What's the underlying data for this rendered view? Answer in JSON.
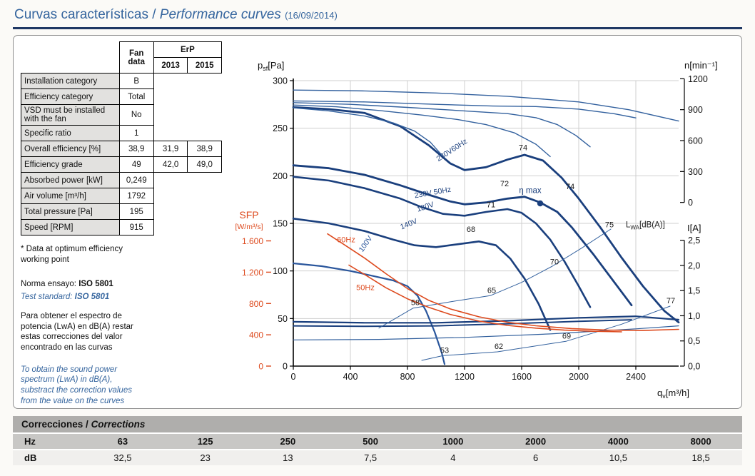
{
  "page": {
    "title_es": "Curvas características",
    "title_sep": " / ",
    "title_en": "Performance curves",
    "title_date": "(16/09/2014)"
  },
  "fan_table": {
    "header": {
      "fan": "Fan\ndata",
      "erp": "ErP",
      "y2013": "2013",
      "y2015": "2015"
    },
    "rows": [
      {
        "label": "Installation category",
        "fan": "B"
      },
      {
        "label": "Efficiency category",
        "fan": "Total"
      },
      {
        "label": "VSD must be installed with the fan",
        "fan": "No"
      },
      {
        "label": "Specific ratio",
        "fan": "1"
      },
      {
        "label": "Overall efficiency [%]",
        "fan": "38,9",
        "erp2013": "31,9",
        "erp2015": "38,9"
      },
      {
        "label": "Efficiency grade",
        "fan": "49",
        "erp2013": "42,0",
        "erp2015": "49,0"
      },
      {
        "label": "Absorbed power [kW]",
        "fan": "0,249"
      },
      {
        "label": "Air volume [m³/h]",
        "fan": "1792"
      },
      {
        "label": "Total pressure [Pa]",
        "fan": "195"
      },
      {
        "label": "Speed [RPM]",
        "fan": "915"
      }
    ]
  },
  "notes": {
    "star": "* Data at optimum efficiency\nworking point",
    "norma_prefix": "Norma ensayo: ",
    "norma_value": "ISO 5801",
    "test_prefix": "Test standard: ",
    "test_value": "ISO 5801",
    "para_es": "Para obtener el espectro de\npotencia (LwA) en dB(A) restar\nestas correcciones del valor\nencontrado en las curvas",
    "para_en": "To obtain the sound power\nspectrum (LwA) in dB(A),\nsubstract the correction values\nfrom the value on the curves"
  },
  "chart_data": {
    "type": "line",
    "title": "",
    "axes": {
      "x": {
        "sym": "q",
        "sub": "v",
        "unit": "[m³/h]",
        "ticks": [
          0,
          400,
          800,
          1200,
          1600,
          2000,
          2400
        ],
        "max": 2700
      },
      "pressure": {
        "sym": "p",
        "sub": "sf",
        "unit": "[Pa]",
        "ticks": [
          0,
          50,
          100,
          150,
          200,
          250,
          300
        ]
      },
      "speed": {
        "label": "n",
        "unit": "[min⁻¹]",
        "ticks": [
          "1200",
          "900",
          "600",
          "300",
          "0"
        ]
      },
      "current": {
        "label": "I",
        "unit": "[A]",
        "ticks": [
          "2,5",
          "2,0",
          "1,5",
          "1,0",
          "0,5",
          "0,0"
        ]
      },
      "sfp": {
        "label": "SFP",
        "unit": "[W/m³/s]",
        "ticks": [
          "1.600",
          "1.200",
          "800",
          "400",
          "0"
        ],
        "color": "#dd4a1e"
      }
    },
    "series": [
      {
        "name": "pressure-230V60Hz",
        "axis": "pa",
        "color": "#1a3f7d",
        "width": 2.8,
        "points": [
          [
            0,
            272
          ],
          [
            250,
            270
          ],
          [
            500,
            266
          ],
          [
            750,
            252
          ],
          [
            950,
            232
          ],
          [
            1100,
            213
          ],
          [
            1200,
            206
          ],
          [
            1350,
            209
          ],
          [
            1500,
            217
          ],
          [
            1620,
            222
          ],
          [
            1750,
            216
          ],
          [
            1880,
            198
          ],
          [
            2000,
            176
          ],
          [
            2150,
            146
          ],
          [
            2300,
            114
          ],
          [
            2450,
            84
          ],
          [
            2600,
            58
          ],
          [
            2700,
            46
          ]
        ]
      },
      {
        "name": "pressure-230V50Hz",
        "axis": "pa",
        "color": "#1a3f7d",
        "width": 2.8,
        "points": [
          [
            0,
            211
          ],
          [
            250,
            208
          ],
          [
            500,
            201
          ],
          [
            750,
            190
          ],
          [
            950,
            180
          ],
          [
            1100,
            173
          ],
          [
            1200,
            170
          ],
          [
            1350,
            172
          ],
          [
            1500,
            176
          ],
          [
            1620,
            178
          ],
          [
            1730,
            172
          ],
          [
            1850,
            162
          ],
          [
            1950,
            146
          ],
          [
            2100,
            118
          ],
          [
            2250,
            88
          ],
          [
            2370,
            64
          ]
        ]
      },
      {
        "name": "pressure-180V",
        "axis": "pa",
        "color": "#1a3f7d",
        "width": 2.6,
        "points": [
          [
            0,
            199
          ],
          [
            250,
            195
          ],
          [
            500,
            187
          ],
          [
            750,
            176
          ],
          [
            900,
            167
          ],
          [
            1050,
            160
          ],
          [
            1200,
            158
          ],
          [
            1350,
            162
          ],
          [
            1500,
            165
          ],
          [
            1600,
            161
          ],
          [
            1700,
            150
          ],
          [
            1800,
            133
          ],
          [
            1900,
            110
          ],
          [
            2000,
            84
          ],
          [
            2080,
            62
          ]
        ]
      },
      {
        "name": "pressure-140V",
        "axis": "pa",
        "color": "#1a3f7d",
        "width": 2.6,
        "points": [
          [
            0,
            155
          ],
          [
            250,
            150
          ],
          [
            500,
            142
          ],
          [
            700,
            133
          ],
          [
            850,
            127
          ],
          [
            1000,
            125
          ],
          [
            1150,
            128
          ],
          [
            1300,
            131
          ],
          [
            1420,
            127
          ],
          [
            1520,
            113
          ],
          [
            1620,
            92
          ],
          [
            1720,
            65
          ],
          [
            1800,
            38
          ]
        ]
      },
      {
        "name": "pressure-100V",
        "axis": "pa",
        "color": "#2a569c",
        "width": 2.2,
        "points": [
          [
            0,
            108
          ],
          [
            200,
            105
          ],
          [
            400,
            100
          ],
          [
            550,
            95
          ],
          [
            700,
            90
          ],
          [
            800,
            84
          ],
          [
            870,
            74
          ],
          [
            930,
            58
          ],
          [
            990,
            36
          ],
          [
            1040,
            14
          ],
          [
            1060,
            2
          ]
        ]
      },
      {
        "name": "speed-230V60Hz",
        "axis": "n",
        "color": "#33619e",
        "width": 1.4,
        "points": [
          [
            0,
            1090
          ],
          [
            500,
            1082
          ],
          [
            1000,
            1062
          ],
          [
            1500,
            1030
          ],
          [
            2000,
            975
          ],
          [
            2350,
            900
          ],
          [
            2700,
            790
          ]
        ]
      },
      {
        "name": "speed-230V50Hz",
        "axis": "n",
        "color": "#33619e",
        "width": 1.4,
        "points": [
          [
            0,
            985
          ],
          [
            500,
            975
          ],
          [
            1000,
            952
          ],
          [
            1400,
            935
          ],
          [
            1700,
            930
          ],
          [
            2000,
            905
          ],
          [
            2250,
            860
          ],
          [
            2400,
            820
          ]
        ]
      },
      {
        "name": "speed-180V",
        "axis": "n",
        "color": "#33619e",
        "width": 1.4,
        "points": [
          [
            0,
            968
          ],
          [
            400,
            952
          ],
          [
            800,
            922
          ],
          [
            1200,
            888
          ],
          [
            1500,
            862
          ],
          [
            1700,
            822
          ],
          [
            1850,
            755
          ],
          [
            1980,
            650
          ],
          [
            2080,
            540
          ]
        ]
      },
      {
        "name": "speed-140V",
        "axis": "n",
        "color": "#33619e",
        "width": 1.4,
        "points": [
          [
            0,
            945
          ],
          [
            300,
            928
          ],
          [
            600,
            892
          ],
          [
            900,
            848
          ],
          [
            1150,
            805
          ],
          [
            1350,
            755
          ],
          [
            1550,
            675
          ],
          [
            1700,
            565
          ],
          [
            1800,
            445
          ]
        ]
      },
      {
        "name": "speed-100V",
        "axis": "n",
        "color": "#33619e",
        "width": 1.4,
        "points": [
          [
            0,
            918
          ],
          [
            250,
            888
          ],
          [
            500,
            838
          ],
          [
            700,
            772
          ],
          [
            850,
            692
          ],
          [
            960,
            585
          ],
          [
            1040,
            460
          ]
        ]
      },
      {
        "name": "current-230V60Hz",
        "axis": "I",
        "color": "#1a3f7d",
        "width": 2.2,
        "points": [
          [
            0,
            0.88
          ],
          [
            500,
            0.86
          ],
          [
            1000,
            0.86
          ],
          [
            1500,
            0.9
          ],
          [
            2000,
            0.96
          ],
          [
            2400,
            0.99
          ],
          [
            2700,
            0.92
          ]
        ]
      },
      {
        "name": "current-230V50Hz",
        "axis": "I",
        "color": "#1a3f7d",
        "width": 2.0,
        "points": [
          [
            0,
            0.8
          ],
          [
            500,
            0.79
          ],
          [
            1000,
            0.8
          ],
          [
            1500,
            0.84
          ],
          [
            2000,
            0.89
          ],
          [
            2370,
            0.92
          ]
        ]
      },
      {
        "name": "current-low-voltage",
        "axis": "I",
        "color": "#33619e",
        "width": 1.2,
        "points": [
          [
            0,
            0.52
          ],
          [
            600,
            0.53
          ],
          [
            1200,
            0.57
          ],
          [
            1800,
            0.64
          ],
          [
            2400,
            0.74
          ],
          [
            2700,
            0.8
          ]
        ]
      },
      {
        "name": "lwa-locus-upper",
        "axis": "pa",
        "color": "#33619e",
        "width": 1.0,
        "points": [
          [
            600,
            40
          ],
          [
            840,
            61
          ],
          [
            1120,
            68
          ],
          [
            1380,
            74
          ],
          [
            1600,
            88
          ],
          [
            1815,
            105
          ],
          [
            2020,
            124
          ],
          [
            2225,
            144
          ]
        ]
      },
      {
        "name": "lwa-locus-lower",
        "axis": "pa",
        "color": "#33619e",
        "width": 1.0,
        "points": [
          [
            900,
            6
          ],
          [
            1050,
            11
          ],
          [
            1430,
            15
          ],
          [
            1910,
            26
          ],
          [
            2300,
            44
          ],
          [
            2640,
            63
          ]
        ]
      },
      {
        "name": "sfp-60Hz",
        "axis": "sfp",
        "color": "#dd4a1e",
        "width": 1.6,
        "points": [
          [
            240,
            1690
          ],
          [
            350,
            1560
          ],
          [
            500,
            1380
          ],
          [
            650,
            1180
          ],
          [
            800,
            990
          ],
          [
            950,
            840
          ],
          [
            1100,
            730
          ],
          [
            1300,
            630
          ],
          [
            1500,
            560
          ],
          [
            1700,
            515
          ],
          [
            1950,
            480
          ],
          [
            2200,
            460
          ],
          [
            2450,
            455
          ],
          [
            2700,
            470
          ]
        ]
      },
      {
        "name": "sfp-50Hz",
        "axis": "sfp",
        "color": "#dd4a1e",
        "width": 1.6,
        "points": [
          [
            390,
            1290
          ],
          [
            500,
            1170
          ],
          [
            650,
            1000
          ],
          [
            800,
            860
          ],
          [
            950,
            750
          ],
          [
            1100,
            660
          ],
          [
            1300,
            575
          ],
          [
            1500,
            520
          ],
          [
            1700,
            485
          ],
          [
            1900,
            460
          ],
          [
            2100,
            445
          ],
          [
            2300,
            438
          ]
        ]
      }
    ],
    "eta_max_point": {
      "x": 1730,
      "y": 171
    },
    "annotations": [
      {
        "text": "230V60Hz",
        "x": 1120,
        "y": 225,
        "rotate": -33,
        "color": "#1a3f7d",
        "size": 10.5
      },
      {
        "text": "230V 50Hz",
        "x": 980,
        "y": 180,
        "rotate": -10,
        "color": "#1a3f7d",
        "size": 10.5
      },
      {
        "text": "180V",
        "x": 930,
        "y": 165,
        "rotate": -18,
        "color": "#1a3f7d",
        "size": 10.5
      },
      {
        "text": "140V",
        "x": 815,
        "y": 147,
        "rotate": -22,
        "color": "#1a3f7d",
        "size": 10.5
      },
      {
        "text": "100V",
        "x": 520,
        "y": 127,
        "rotate": -55,
        "color": "#2a569c",
        "size": 10.5
      },
      {
        "text": "60Hz",
        "x": 370,
        "y": 130,
        "color": "#dd4a1e",
        "size": 11
      },
      {
        "text": "50Hz",
        "x": 505,
        "y": 80,
        "color": "#dd4a1e",
        "size": 11
      },
      {
        "text": "η max",
        "x": 1660,
        "y": 182,
        "color": "#1a3f7d",
        "size": 11.5
      },
      {
        "text": "53",
        "x": 1060,
        "y": 14,
        "color": "#1b1b1b"
      },
      {
        "text": "58",
        "x": 855,
        "y": 64,
        "color": "#1b1b1b"
      },
      {
        "text": "62",
        "x": 1440,
        "y": 18,
        "color": "#1b1b1b"
      },
      {
        "text": "65",
        "x": 1390,
        "y": 77,
        "color": "#1b1b1b"
      },
      {
        "text": "68",
        "x": 1245,
        "y": 141,
        "color": "#1b1b1b"
      },
      {
        "text": "69",
        "x": 1915,
        "y": 29,
        "color": "#1b1b1b"
      },
      {
        "text": "70",
        "x": 1830,
        "y": 107,
        "color": "#1b1b1b"
      },
      {
        "text": "71",
        "x": 1385,
        "y": 167,
        "color": "#1b1b1b"
      },
      {
        "text": "72",
        "x": 1480,
        "y": 189,
        "color": "#1b1b1b"
      },
      {
        "text": "74",
        "x": 1610,
        "y": 227,
        "color": "#1b1b1b"
      },
      {
        "text": "74",
        "x": 1940,
        "y": 186,
        "color": "#1b1b1b"
      },
      {
        "text": "75",
        "x": 2215,
        "y": 146,
        "color": "#1b1b1b"
      },
      {
        "text": "77",
        "x": 2645,
        "y": 66,
        "color": "#1b1b1b"
      },
      {
        "text": "L",
        "sub": "WA",
        "unit": "[dB(A)]",
        "x": 2330,
        "y": 146,
        "anchor": "start",
        "color": "#1b1b1b",
        "size": 11.5
      }
    ]
  },
  "corrections": {
    "title_es": "Correcciones",
    "title_sep": " / ",
    "title_en": "Corrections",
    "hz_label": "Hz",
    "db_label": "dB",
    "hz": [
      "63",
      "125",
      "250",
      "500",
      "1000",
      "2000",
      "4000",
      "8000"
    ],
    "db": [
      "32,5",
      "23",
      "13",
      "7,5",
      "4",
      "6",
      "10,5",
      "18,5"
    ]
  }
}
